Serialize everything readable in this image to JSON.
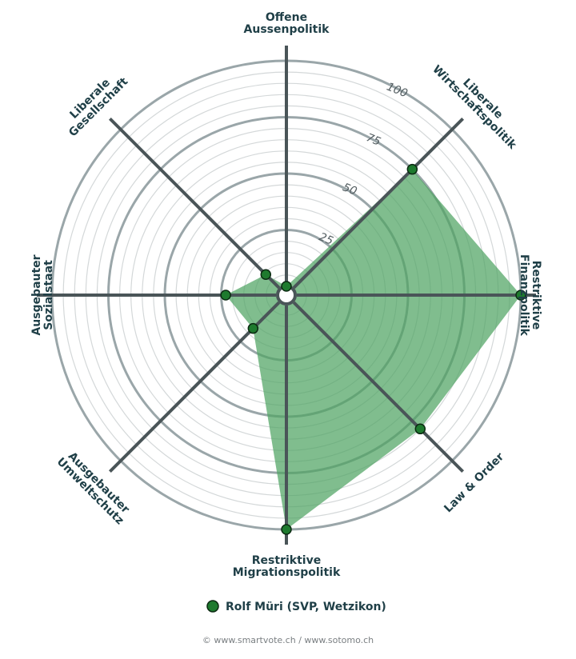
{
  "chart_data": {
    "type": "radar",
    "axes": [
      [
        "Offene",
        "Aussenpolitik"
      ],
      [
        "Liberale",
        "Wirtschaftspolitik"
      ],
      [
        "Restriktive",
        "Finanzpolitik"
      ],
      [
        "Law & Order"
      ],
      [
        "Restriktive",
        "Migrationspolitik"
      ],
      [
        "Ausgebauter",
        "Umweltschutz"
      ],
      [
        "Ausgebauter",
        "Sozialstaat"
      ],
      [
        "Liberale",
        "Gesellschaft"
      ]
    ],
    "rlim": [
      0,
      100
    ],
    "ring_ticks": [
      25,
      50,
      75,
      100
    ],
    "minor_ring_step": 5,
    "series": [
      {
        "name": "Rolf Müri (SVP, Wetzikon)",
        "color": "#1e7a2e",
        "fill": "#4fa463",
        "values": [
          0,
          75,
          100,
          80,
          100,
          17,
          23,
          9
        ]
      }
    ],
    "legend_position": "bottom"
  },
  "legend": {
    "label": "Rolf Müri (SVP, Wetzikon)"
  },
  "footer": {
    "copyright": "© www.smartvote.ch / www.sotomo.ch"
  },
  "colors": {
    "grid_major": "#9aa6a9",
    "grid_minor": "#d4d8d9",
    "spoke": "#4a5558",
    "label": "#1f3f47"
  }
}
